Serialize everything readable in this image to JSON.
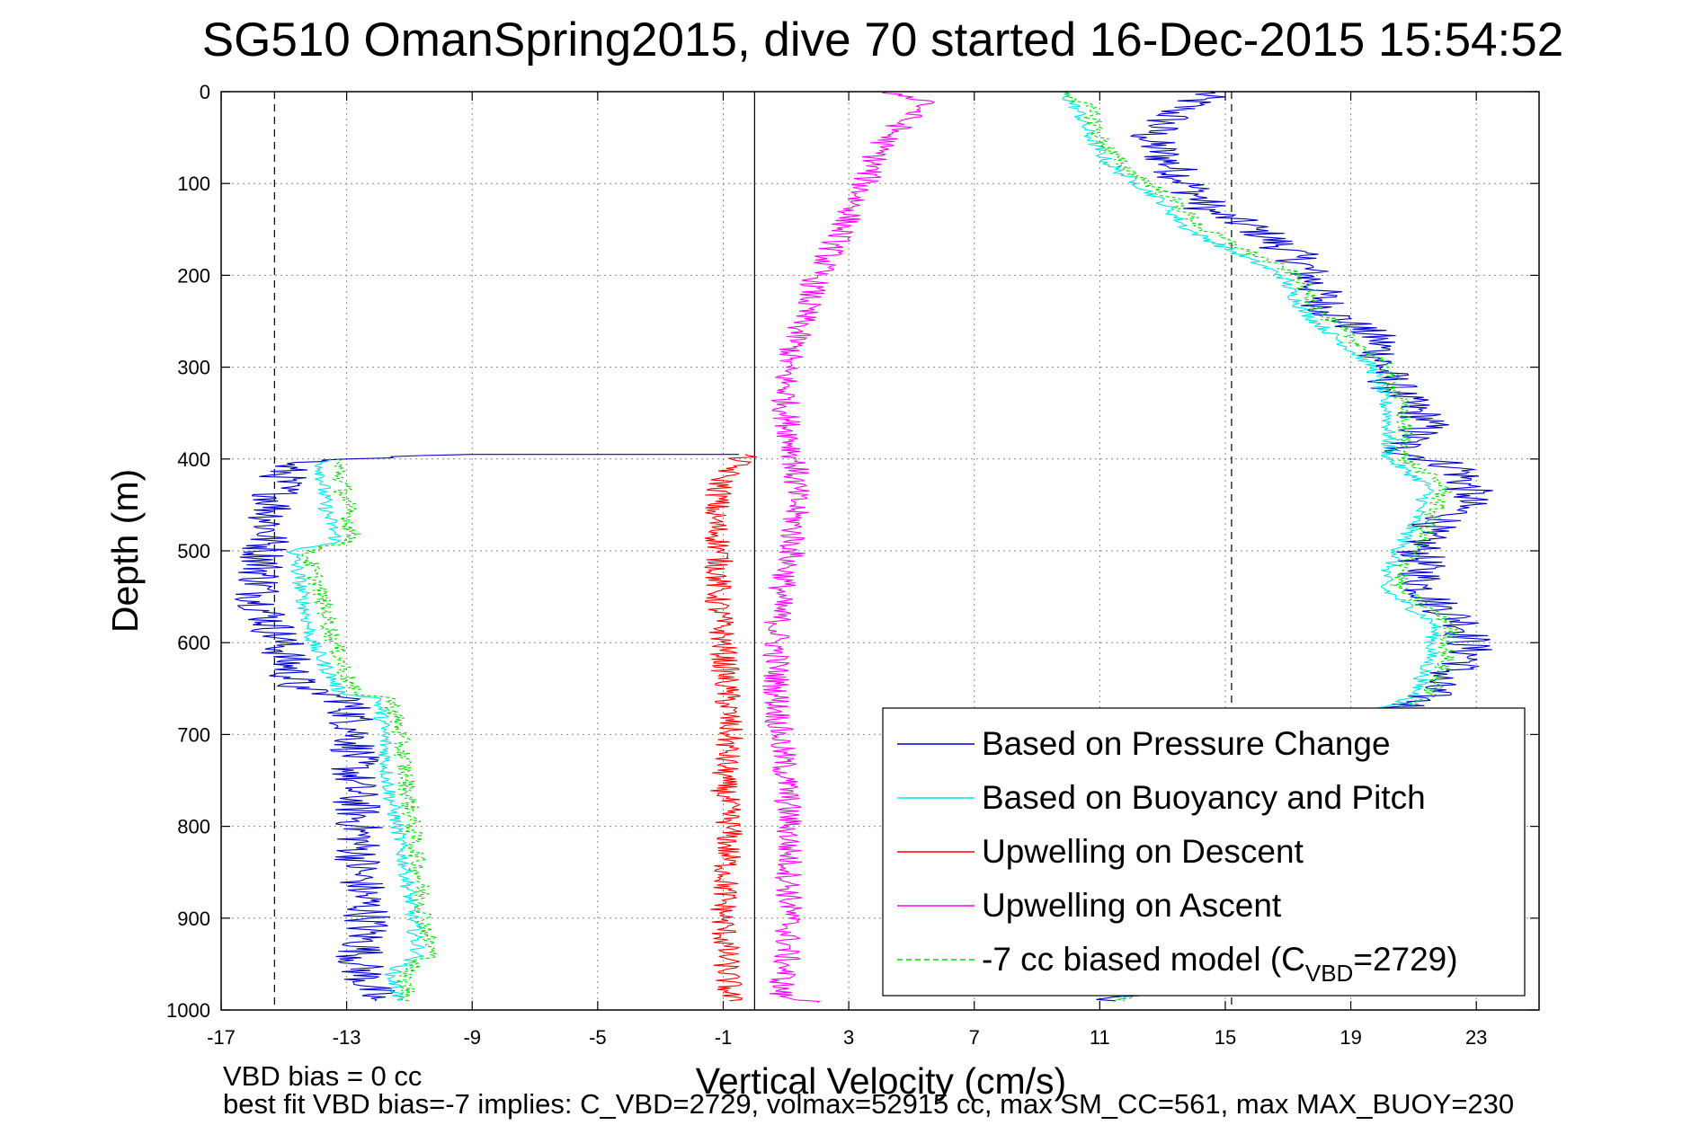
{
  "chart_data": {
    "type": "line",
    "title": "SG510 OmanSpring2015, dive 70 started 16-Dec-2015 15:54:52",
    "xlabel": "Vertical Velocity (cm/s)",
    "ylabel": "Depth (m)",
    "xlim": [
      -17,
      25
    ],
    "ylim": [
      0,
      1000
    ],
    "y_reversed": true,
    "grid": true,
    "xticks": [
      -17,
      -13,
      -9,
      -5,
      -1,
      3,
      7,
      11,
      15,
      19,
      23
    ],
    "yticks": [
      0,
      100,
      200,
      300,
      400,
      500,
      600,
      700,
      800,
      900,
      1000
    ],
    "reference_lines": [
      {
        "x": -15.3,
        "style": "dashed"
      },
      {
        "x": 0,
        "style": "solid"
      },
      {
        "x": 15.2,
        "style": "dashed"
      }
    ],
    "legend_position": "bottom-right",
    "legend": [
      {
        "label": "Based on Pressure Change",
        "color": "#0000cc",
        "style": "solid"
      },
      {
        "label": "Based on Buoyancy and Pitch",
        "color": "#00e5e5",
        "style": "solid"
      },
      {
        "label": "Upwelling on Descent",
        "color": "#ff0000",
        "style": "solid"
      },
      {
        "label": "Upwelling on Ascent",
        "color": "#ff00ff",
        "style": "solid"
      },
      {
        "label": "-7 cc biased model (C",
        "sub": "VBD",
        "suffix": "=2729)",
        "color": "#00dd00",
        "style": "dashed"
      }
    ],
    "series": [
      {
        "name": "Based on Pressure Change",
        "color": "#0000cc",
        "noise": 0.8,
        "segments": [
          {
            "points": [
              [
                0,
                -12.0
              ],
              [
                0,
                14.5
              ],
              [
                20,
                13.5
              ],
              [
                50,
                12.5
              ],
              [
                100,
                13.8
              ],
              [
                130,
                14.5
              ],
              [
                150,
                16.0
              ],
              [
                180,
                17.3
              ],
              [
                200,
                17.7
              ],
              [
                240,
                18.3
              ],
              [
                270,
                19.9
              ],
              [
                300,
                20.0
              ],
              [
                330,
                20.5
              ],
              [
                360,
                21.5
              ],
              [
                390,
                20.5
              ],
              [
                410,
                22.5
              ],
              [
                440,
                22.8
              ],
              [
                460,
                22.3
              ],
              [
                480,
                21.3
              ],
              [
                500,
                21.2
              ],
              [
                540,
                21.3
              ],
              [
                560,
                21.8
              ],
              [
                580,
                22.7
              ],
              [
                620,
                22.8
              ],
              [
                640,
                21.7
              ],
              [
                660,
                21.4
              ],
              [
                680,
                20.0
              ],
              [
                700,
                17.5
              ],
              [
                760,
                15.0
              ],
              [
                800,
                14.0
              ],
              [
                850,
                13.8
              ],
              [
                900,
                13.3
              ],
              [
                960,
                12.6
              ],
              [
                990,
                11.5
              ]
            ]
          },
          {
            "points": [
              [
                395,
                -0.5
              ],
              [
                395,
                -9.0
              ],
              [
                400,
                -13.0
              ],
              [
                405,
                -14.9
              ],
              [
                450,
                -15.3
              ],
              [
                500,
                -15.6
              ],
              [
                550,
                -15.8
              ],
              [
                600,
                -15.1
              ],
              [
                650,
                -14.6
              ],
              [
                660,
                -13.0
              ],
              [
                700,
                -12.7
              ],
              [
                750,
                -12.8
              ],
              [
                800,
                -12.6
              ],
              [
                850,
                -12.6
              ],
              [
                900,
                -12.3
              ],
              [
                950,
                -12.6
              ],
              [
                990,
                -12.1
              ]
            ]
          }
        ]
      },
      {
        "name": "Based on Buoyancy and Pitch",
        "color": "#00e5e5",
        "noise": 0.25,
        "segments": [
          {
            "points": [
              [
                0,
                9.8
              ],
              [
                20,
                10.3
              ],
              [
                50,
                10.7
              ],
              [
                80,
                11.3
              ],
              [
                100,
                12.2
              ],
              [
                120,
                13.0
              ],
              [
                150,
                13.8
              ],
              [
                200,
                16.8
              ],
              [
                240,
                17.5
              ],
              [
                300,
                19.7
              ],
              [
                350,
                20.2
              ],
              [
                400,
                20.2
              ],
              [
                430,
                21.5
              ],
              [
                470,
                21.0
              ],
              [
                520,
                20.2
              ],
              [
                540,
                20.0
              ],
              [
                580,
                21.7
              ],
              [
                620,
                21.5
              ],
              [
                660,
                21.0
              ],
              [
                700,
                17.5
              ],
              [
                760,
                15.0
              ],
              [
                800,
                14.0
              ],
              [
                850,
                13.8
              ],
              [
                900,
                13.3
              ],
              [
                960,
                12.6
              ],
              [
                990,
                11.5
              ]
            ]
          },
          {
            "points": [
              [
                400,
                -13.5
              ],
              [
                405,
                -13.8
              ],
              [
                450,
                -13.7
              ],
              [
                490,
                -13.3
              ],
              [
                500,
                -14.7
              ],
              [
                550,
                -14.4
              ],
              [
                600,
                -14.1
              ],
              [
                655,
                -13.2
              ],
              [
                660,
                -12.0
              ],
              [
                700,
                -11.8
              ],
              [
                750,
                -11.7
              ],
              [
                800,
                -11.4
              ],
              [
                850,
                -11.1
              ],
              [
                900,
                -10.9
              ],
              [
                940,
                -10.7
              ],
              [
                960,
                -11.6
              ],
              [
                990,
                -11.3
              ]
            ]
          }
        ]
      },
      {
        "name": "Upwelling on Descent",
        "color": "#ff0000",
        "noise": 0.45,
        "segments": [
          {
            "points": [
              [
                395,
                -0.3
              ],
              [
                420,
                -1.0
              ],
              [
                460,
                -1.3
              ],
              [
                500,
                -1.1
              ],
              [
                550,
                -1.2
              ],
              [
                600,
                -1.0
              ],
              [
                650,
                -0.9
              ],
              [
                700,
                -0.8
              ],
              [
                750,
                -1.0
              ],
              [
                800,
                -0.8
              ],
              [
                850,
                -0.9
              ],
              [
                900,
                -1.0
              ],
              [
                950,
                -0.9
              ],
              [
                990,
                -0.8
              ]
            ]
          }
        ]
      },
      {
        "name": "Upwelling on Ascent",
        "color": "#ff00ff",
        "noise": 0.45,
        "segments": [
          {
            "points": [
              [
                0,
                4.2
              ],
              [
                10,
                5.6
              ],
              [
                30,
                4.8
              ],
              [
                60,
                4.0
              ],
              [
                100,
                3.5
              ],
              [
                150,
                2.8
              ],
              [
                200,
                2.0
              ],
              [
                250,
                1.5
              ],
              [
                300,
                1.0
              ],
              [
                350,
                1.0
              ],
              [
                400,
                1.3
              ],
              [
                450,
                1.3
              ],
              [
                500,
                1.2
              ],
              [
                550,
                0.8
              ],
              [
                600,
                0.7
              ],
              [
                650,
                0.7
              ],
              [
                700,
                0.8
              ],
              [
                750,
                1.0
              ],
              [
                800,
                1.1
              ],
              [
                850,
                1.1
              ],
              [
                900,
                1.1
              ],
              [
                950,
                1.0
              ],
              [
                985,
                0.8
              ],
              [
                992,
                2.0
              ]
            ]
          }
        ]
      },
      {
        "name": "-7 cc biased model",
        "color": "#00dd00",
        "dashed": true,
        "noise": 0.3,
        "segments": [
          {
            "points": [
              [
                0,
                10.0
              ],
              [
                20,
                10.7
              ],
              [
                50,
                11.0
              ],
              [
                80,
                11.7
              ],
              [
                100,
                12.6
              ],
              [
                120,
                13.4
              ],
              [
                150,
                14.3
              ],
              [
                200,
                17.3
              ],
              [
                240,
                18.0
              ],
              [
                300,
                20.2
              ],
              [
                350,
                20.7
              ],
              [
                400,
                20.7
              ],
              [
                430,
                22.0
              ],
              [
                470,
                21.5
              ],
              [
                520,
                20.7
              ],
              [
                540,
                20.5
              ],
              [
                580,
                22.2
              ],
              [
                620,
                22.0
              ],
              [
                660,
                21.5
              ],
              [
                700,
                17.8
              ],
              [
                760,
                15.3
              ],
              [
                800,
                14.3
              ],
              [
                850,
                14.2
              ],
              [
                900,
                13.7
              ],
              [
                960,
                12.9
              ],
              [
                990,
                11.8
              ]
            ]
          },
          {
            "points": [
              [
                400,
                -13.3
              ],
              [
                405,
                -13.3
              ],
              [
                450,
                -13.0
              ],
              [
                490,
                -12.8
              ],
              [
                500,
                -14.3
              ],
              [
                550,
                -13.8
              ],
              [
                600,
                -13.4
              ],
              [
                655,
                -12.8
              ],
              [
                660,
                -11.6
              ],
              [
                700,
                -11.3
              ],
              [
                750,
                -11.1
              ],
              [
                800,
                -10.9
              ],
              [
                850,
                -10.7
              ],
              [
                900,
                -10.5
              ],
              [
                940,
                -10.3
              ],
              [
                960,
                -11.2
              ],
              [
                990,
                -11.0
              ]
            ]
          }
        ]
      }
    ]
  },
  "annotations": {
    "vbd_bias": "VBD bias = 0 cc",
    "best_fit": "best fit VBD bias=-7 implies: C_VBD=2729, volmax=52915 cc, max SM_CC=561, max MAX_BUOY=230"
  }
}
